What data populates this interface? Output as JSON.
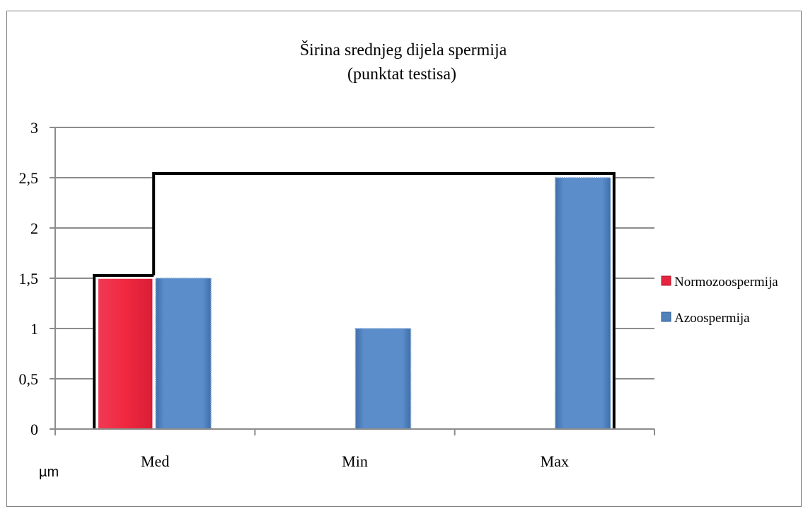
{
  "chart_data": {
    "type": "bar",
    "title": "Širina srednjeg dijela spermija",
    "subtitle": "(punktat testisa)",
    "categories": [
      "Med",
      "Min",
      "Max"
    ],
    "series": [
      {
        "name": "Normozoospermija",
        "values": [
          1.5,
          0,
          0
        ],
        "color": "#e8233f"
      },
      {
        "name": "Azoospermija",
        "values": [
          1.5,
          1.0,
          2.5
        ],
        "color": "#4f81bd"
      }
    ],
    "y_ticks": [
      "0",
      "0,5",
      "1",
      "1,5",
      "2",
      "2,5",
      "3"
    ],
    "ylim": [
      0,
      3
    ],
    "unit_label": "µm",
    "grid": true,
    "legend_position": "right"
  }
}
